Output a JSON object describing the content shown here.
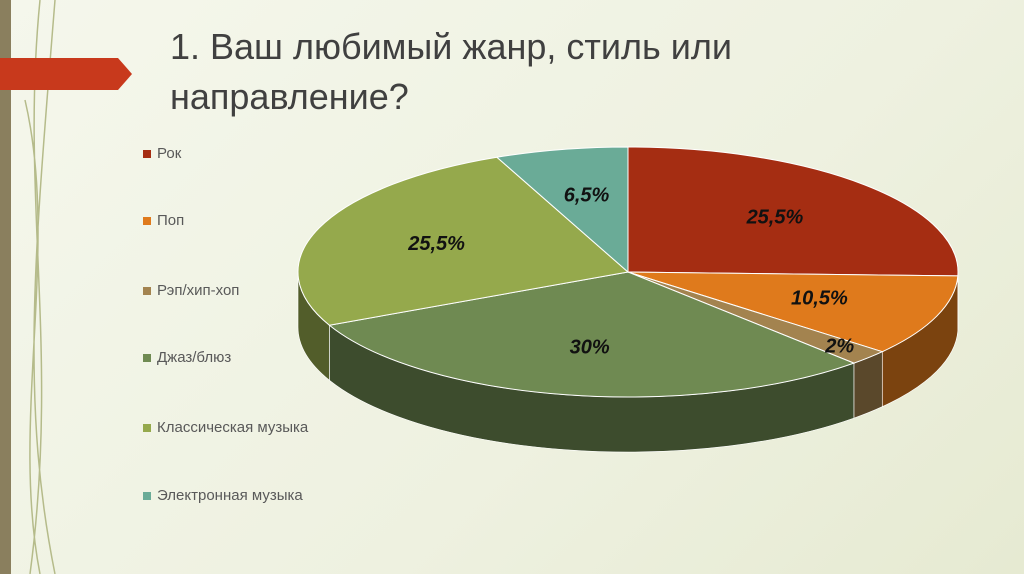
{
  "chart_data": {
    "type": "pie",
    "title": "1. Ваш любимый жанр, стиль или направление?",
    "categories": [
      "Рок",
      "Поп",
      "Рэп/хип-хоп",
      "Джаз/блюз",
      "Классическая музыка",
      "Электронная музыка"
    ],
    "values": [
      25.5,
      10.5,
      2,
      30,
      25.5,
      6.5
    ],
    "value_labels": [
      "25,5%",
      "10,5%",
      "2%",
      "30%",
      "25,5%",
      "6,5%"
    ],
    "colors": [
      "#a52d12",
      "#df7a1c",
      "#a3834f",
      "#6f8a52",
      "#95a94c",
      "#6aab97"
    ],
    "legend": "left"
  }
}
